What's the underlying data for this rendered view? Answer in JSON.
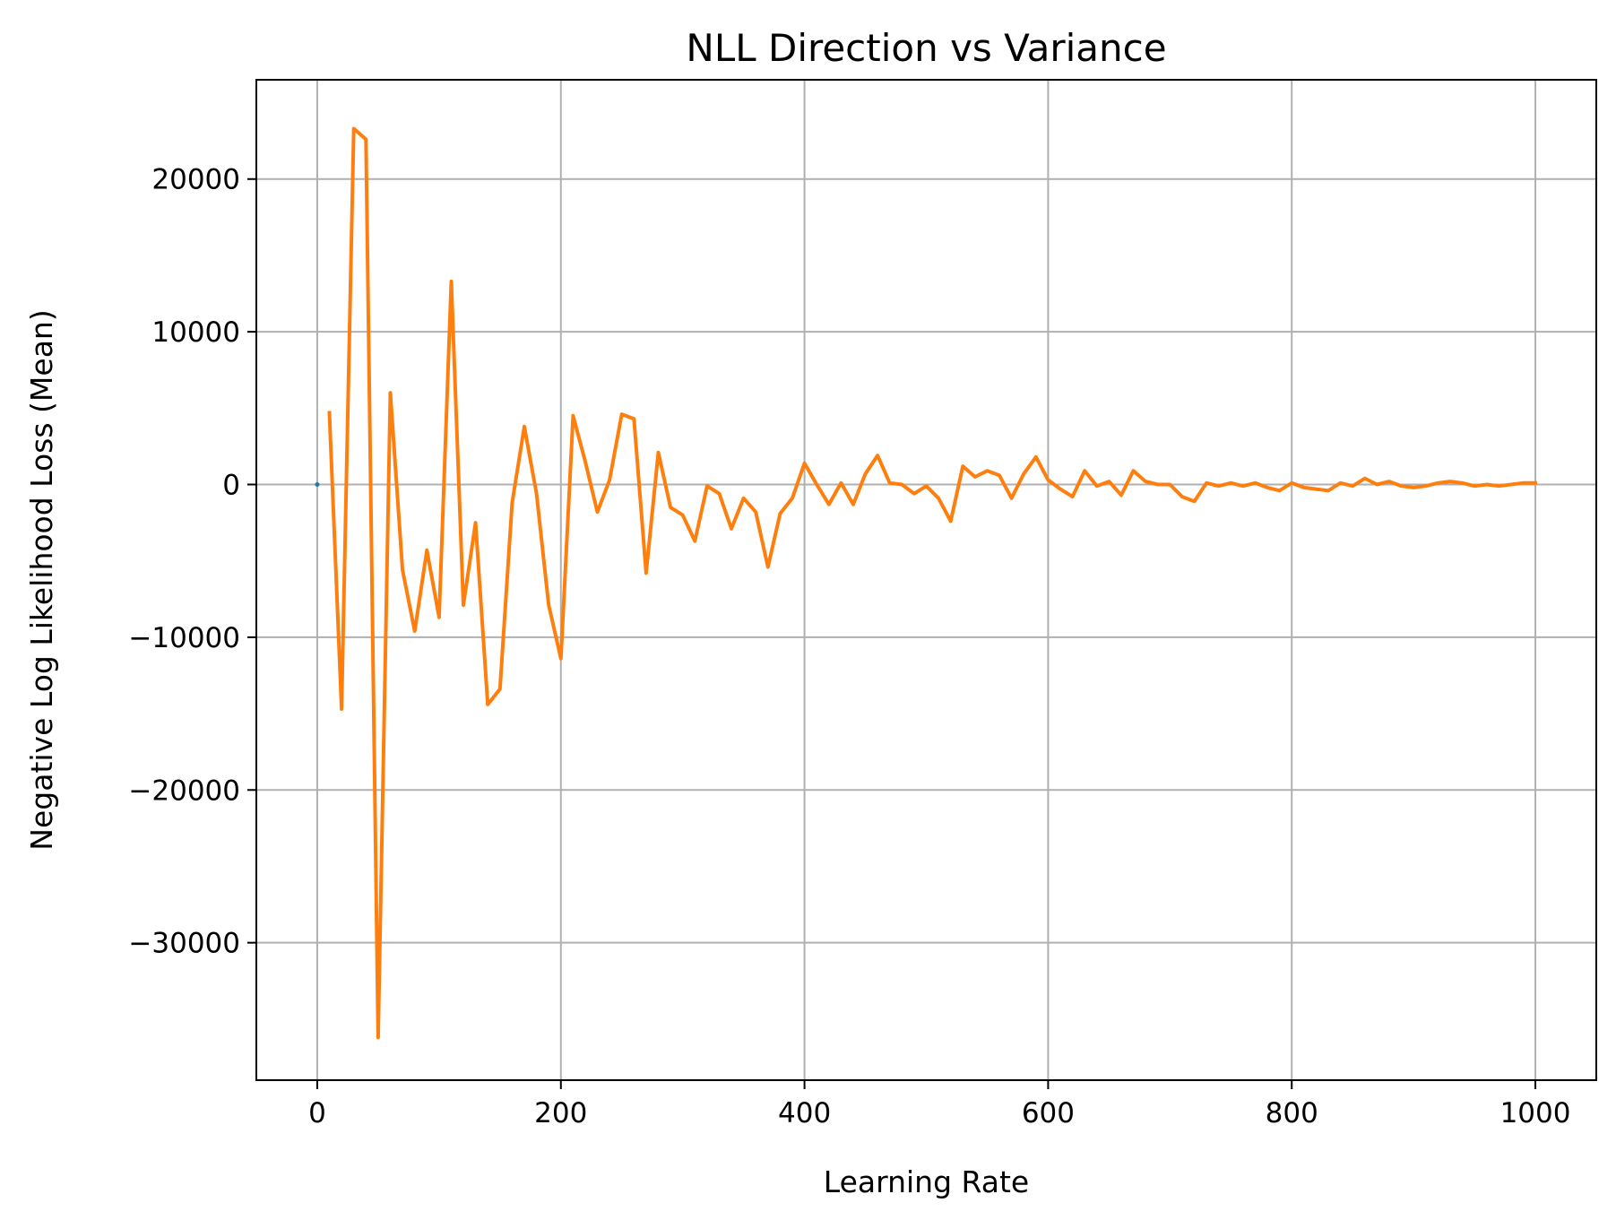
{
  "chart_data": {
    "type": "line",
    "title": "NLL Direction vs Variance",
    "xlabel": "Learning Rate",
    "ylabel": "Negative Log Likelihood Loss (Mean)",
    "xlim": [
      -50,
      1050
    ],
    "ylim": [
      -39000,
      26500
    ],
    "xticks": [
      0,
      200,
      400,
      600,
      800,
      1000
    ],
    "xtick_labels": [
      "0",
      "200",
      "400",
      "600",
      "800",
      "1000"
    ],
    "yticks": [
      20000,
      10000,
      0,
      -10000,
      -20000,
      -30000
    ],
    "ytick_labels": [
      "20000",
      "10000",
      "0",
      "−10000",
      "−20000",
      "−30000"
    ],
    "grid": true,
    "legend": false,
    "series": [
      {
        "color": "#1f77b4",
        "x": [
          0
        ],
        "y": [
          0
        ]
      },
      {
        "color": "#ff7f0e",
        "x": [
          10,
          20,
          30,
          40,
          50,
          60,
          70,
          80,
          90,
          100,
          110,
          120,
          130,
          140,
          150,
          160,
          170,
          180,
          190,
          200,
          210,
          220,
          230,
          240,
          250,
          260,
          270,
          280,
          290,
          300,
          310,
          320,
          330,
          340,
          350,
          360,
          370,
          380,
          390,
          400,
          410,
          420,
          430,
          440,
          450,
          460,
          470,
          480,
          490,
          500,
          510,
          520,
          530,
          540,
          550,
          560,
          570,
          580,
          590,
          600,
          610,
          620,
          630,
          640,
          650,
          660,
          670,
          680,
          690,
          700,
          710,
          720,
          730,
          740,
          750,
          760,
          770,
          780,
          790,
          800,
          810,
          820,
          830,
          840,
          850,
          860,
          870,
          880,
          890,
          900,
          910,
          920,
          930,
          940,
          950,
          960,
          970,
          980,
          990,
          1000
        ],
        "y": [
          4700,
          -14700,
          23300,
          22600,
          -36200,
          6000,
          -5600,
          -9600,
          -4300,
          -8700,
          13300,
          -7900,
          -2500,
          -14400,
          -13400,
          -1200,
          3800,
          -600,
          -7900,
          -11400,
          4500,
          1500,
          -1800,
          300,
          4600,
          4300,
          -5800,
          2100,
          -1500,
          -2000,
          -3700,
          -100,
          -600,
          -2900,
          -900,
          -1800,
          -5400,
          -1900,
          -900,
          1400,
          0,
          -1300,
          100,
          -1300,
          700,
          1900,
          100,
          0,
          -600,
          -100,
          -900,
          -2400,
          1200,
          500,
          900,
          600,
          -900,
          700,
          1800,
          300,
          -300,
          -800,
          900,
          -100,
          200,
          -700,
          900,
          200,
          0,
          0,
          -800,
          -1100,
          100,
          -100,
          100,
          -100,
          100,
          -200,
          -400,
          100,
          -200,
          -300,
          -400,
          100,
          -100,
          400,
          0,
          200,
          -100,
          -200,
          -100,
          100,
          200,
          100,
          -100,
          0,
          -100,
          0,
          100,
          100
        ]
      }
    ]
  }
}
